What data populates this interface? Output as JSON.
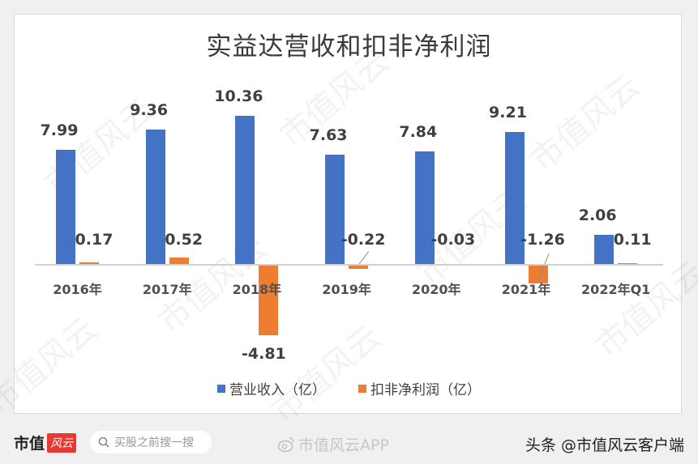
{
  "chart_data": {
    "type": "bar",
    "title": "实益达营收和扣非净利润",
    "categories": [
      "2016年",
      "2017年",
      "2018年",
      "2019年",
      "2020年",
      "2021年",
      "2022年Q1"
    ],
    "series": [
      {
        "name": "营业收入（亿）",
        "color": "#4472c4",
        "values": [
          7.99,
          9.36,
          10.36,
          7.63,
          7.84,
          9.21,
          2.06
        ]
      },
      {
        "name": "扣非净利润（亿）",
        "color": "#ed7d31",
        "values": [
          0.17,
          0.52,
          -4.81,
          -0.22,
          -0.03,
          -1.26,
          0.11
        ]
      }
    ],
    "value_labels": {
      "revenue": [
        "7.99",
        "9.36",
        "10.36",
        "7.63",
        "7.84",
        "9.21",
        "2.06"
      ],
      "profit": [
        "0.17",
        "0.52",
        "-4.81",
        "-0.22",
        "-0.03",
        "-1.26",
        "0.11"
      ]
    },
    "xlabel": "",
    "ylabel": "",
    "ylim": [
      -4.81,
      10.36
    ],
    "grid": false,
    "legend_position": "bottom"
  },
  "legend": {
    "revenue": "营业收入（亿）",
    "profit": "扣非净利润（亿）"
  },
  "watermark": "市值风云",
  "footer": {
    "logo_text": "市值",
    "logo_badge": "风云",
    "search_placeholder": "买股之前搜一搜",
    "weibo_text": "市值风云APP",
    "credit": "头条 @市值风云客户端"
  },
  "colors": {
    "revenue": "#4472c4",
    "profit": "#ed7d31"
  }
}
